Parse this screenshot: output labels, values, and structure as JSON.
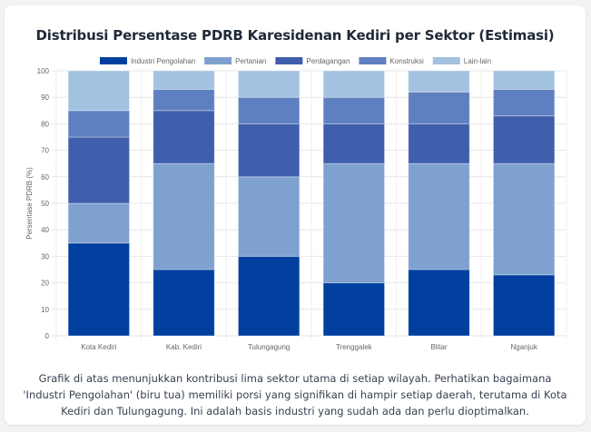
{
  "card": {
    "caption": "Grafik di atas menunjukkan kontribusi lima sektor utama di setiap wilayah. Perhatikan bagaimana 'Industri Pengolahan' (biru tua) memiliki porsi yang signifikan di hampir setiap daerah, terutama di Kota Kediri dan Tulungagung. Ini adalah basis industri yang sudah ada dan perlu dioptimalkan."
  },
  "chart_data": {
    "type": "bar",
    "stacked": true,
    "title": "Distribusi Persentase PDRB Karesidenan Kediri per Sektor (Estimasi)",
    "xlabel": "",
    "ylabel": "Persentase PDRB (%)",
    "ylim": [
      0,
      100
    ],
    "yticks": [
      0,
      10,
      20,
      30,
      40,
      50,
      60,
      70,
      80,
      90,
      100
    ],
    "grid": true,
    "legend_position": "top-center",
    "categories": [
      "Kota Kediri",
      "Kab. Kediri",
      "Tulungagung",
      "Trenggalek",
      "Blitar",
      "Nganjuk"
    ],
    "series": [
      {
        "name": "Industri Pengolahan",
        "color": "#003f9e",
        "values": [
          35,
          25,
          30,
          20,
          25,
          23
        ]
      },
      {
        "name": "Pertanian",
        "color": "#7fa1d0",
        "values": [
          15,
          40,
          30,
          45,
          40,
          42
        ]
      },
      {
        "name": "Perdagangan",
        "color": "#3f5eac",
        "values": [
          25,
          20,
          20,
          15,
          15,
          18
        ]
      },
      {
        "name": "Konstruksi",
        "color": "#5f80c0",
        "values": [
          10,
          8,
          10,
          10,
          12,
          10
        ]
      },
      {
        "name": "Lain-lain",
        "color": "#a2c2e0",
        "values": [
          15,
          7,
          10,
          10,
          8,
          7
        ]
      }
    ]
  }
}
